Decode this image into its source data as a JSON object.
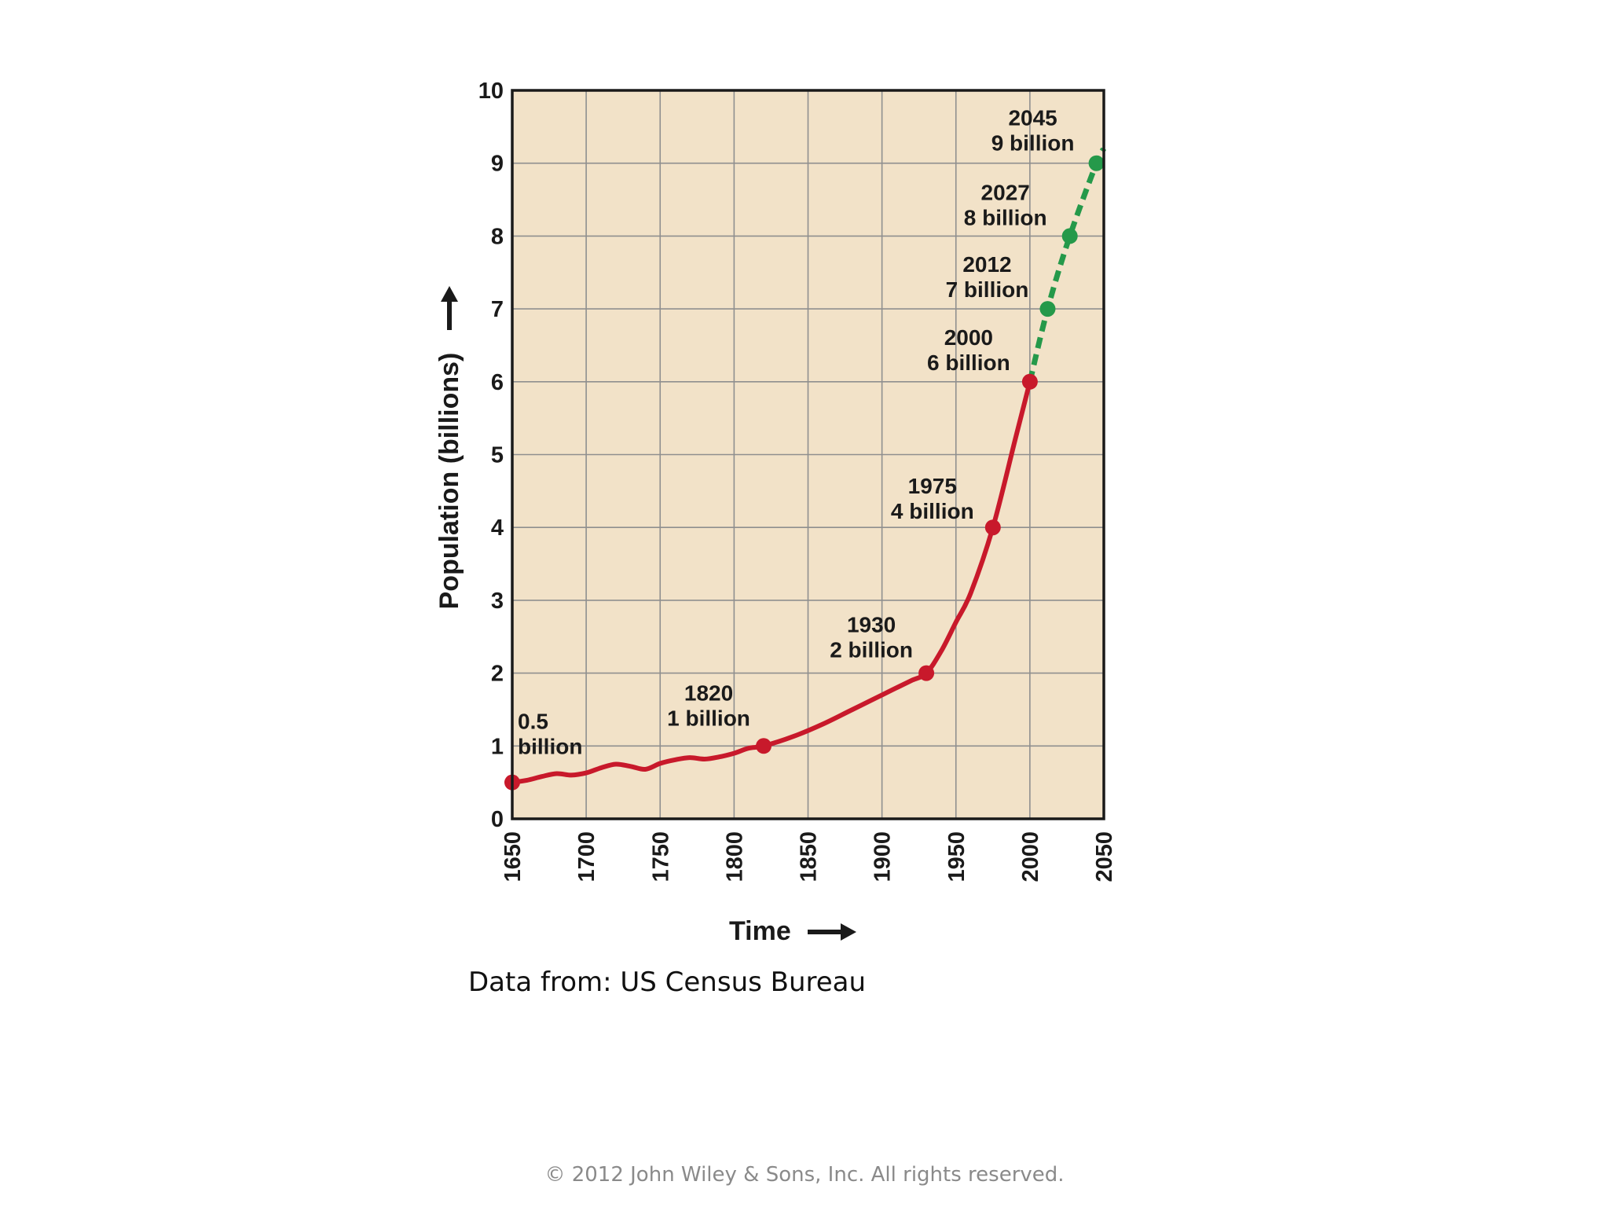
{
  "source_note": "Data from: US Census Bureau",
  "copyright": "© 2012 John Wiley & Sons, Inc. All rights reserved.",
  "colors": {
    "plot_background": "#f2e2c8",
    "grid": "#8f8f8f",
    "historical": "#c8192b",
    "projected": "#25994a"
  },
  "chart_data": {
    "type": "line",
    "title": "",
    "xlabel": "Time",
    "ylabel": "Population (billions)",
    "xlim": [
      1650,
      2050
    ],
    "ylim": [
      0,
      10
    ],
    "x_ticks": [
      "1650",
      "1700",
      "1750",
      "1800",
      "1850",
      "1900",
      "1950",
      "2000",
      "2050"
    ],
    "y_ticks": [
      "0",
      "1",
      "2",
      "3",
      "4",
      "5",
      "6",
      "7",
      "8",
      "9",
      "10"
    ],
    "grid": true,
    "legend": "none",
    "series": [
      {
        "style": "solid",
        "color": "#c8192b",
        "x": [
          1650,
          1660,
          1670,
          1680,
          1690,
          1700,
          1710,
          1720,
          1730,
          1740,
          1750,
          1760,
          1770,
          1780,
          1790,
          1800,
          1810,
          1820,
          1840,
          1860,
          1880,
          1900,
          1910,
          1920,
          1930,
          1940,
          1950,
          1960,
          1975,
          1990,
          2000
        ],
        "y": [
          0.5,
          0.53,
          0.58,
          0.62,
          0.6,
          0.63,
          0.7,
          0.75,
          0.72,
          0.68,
          0.76,
          0.81,
          0.84,
          0.82,
          0.85,
          0.9,
          0.97,
          1.0,
          1.13,
          1.3,
          1.5,
          1.7,
          1.8,
          1.9,
          2.0,
          2.3,
          2.7,
          3.1,
          4.0,
          5.2,
          6.0
        ]
      },
      {
        "style": "dashed",
        "color": "#25994a",
        "x": [
          2000,
          2012,
          2027,
          2045,
          2050
        ],
        "y": [
          6.0,
          7.0,
          8.0,
          9.0,
          9.2
        ]
      }
    ],
    "points": [
      {
        "x": 1650,
        "y": 0.5,
        "color": "#c8192b",
        "label_lines": [
          "0.5",
          "billion"
        ]
      },
      {
        "x": 1820,
        "y": 1,
        "color": "#c8192b",
        "label_lines": [
          "1820",
          "1 billion"
        ]
      },
      {
        "x": 1930,
        "y": 2,
        "color": "#c8192b",
        "label_lines": [
          "1930",
          "2 billion"
        ]
      },
      {
        "x": 1975,
        "y": 4,
        "color": "#c8192b",
        "label_lines": [
          "1975",
          "4 billion"
        ]
      },
      {
        "x": 2000,
        "y": 6,
        "color": "#c8192b",
        "label_lines": [
          "2000",
          "6 billion"
        ]
      },
      {
        "x": 2012,
        "y": 7,
        "color": "#25994a",
        "label_lines": [
          "2012",
          "7 billion"
        ]
      },
      {
        "x": 2027,
        "y": 8,
        "color": "#25994a",
        "label_lines": [
          "2027",
          "8 billion"
        ]
      },
      {
        "x": 2045,
        "y": 9,
        "color": "#25994a",
        "label_lines": [
          "2045",
          "9 billion"
        ]
      }
    ]
  }
}
